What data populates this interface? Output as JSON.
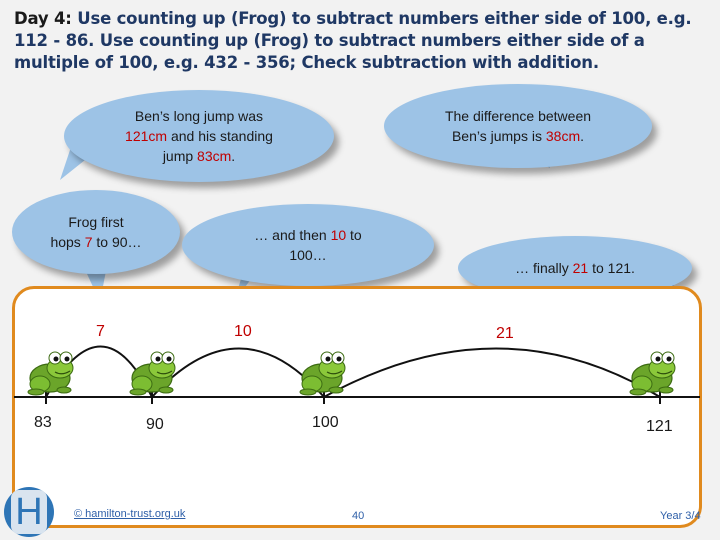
{
  "title": {
    "label": "Day 4:",
    "text": "Use counting up (Frog) to subtract numbers either side of 100, e.g. 112 - 86. Use counting up (Frog) to subtract numbers either side of a multiple of 100, e.g. 432 - 356; Check subtraction with addition."
  },
  "bubbles": {
    "long_jump": {
      "t1": "Ben’s long jump was",
      "v1": "121cm",
      "t2": " and his standing",
      "t3": "jump ",
      "v2": "83cm",
      "t4": "."
    },
    "difference": {
      "t1": "The difference between",
      "t2": "Ben’s jumps is ",
      "v1": "38cm",
      "t3": "."
    },
    "frog_first": {
      "t1": "Frog first",
      "t2": "hops ",
      "v1": "7",
      "t3": " to 90…"
    },
    "then_10": {
      "t1": "… and then ",
      "v1": "10",
      "t2": " to",
      "t3": "100…"
    },
    "finally_21": {
      "t1": "… finally ",
      "v1": "21",
      "t2": " to 121."
    }
  },
  "numberline": {
    "jumps": [
      "7",
      "10",
      "21"
    ],
    "labels": [
      "83",
      "90",
      "100",
      "121"
    ]
  },
  "footer": {
    "copyright": "© hamilton-trust.org.uk",
    "page": "40",
    "year": "Year 3/4",
    "logo_letter": "H"
  },
  "colors": {
    "accent_red": "#c00000",
    "bubble_blue": "#9dc3e6",
    "frame_orange": "#e08a1e",
    "title_blue": "#1f3864"
  }
}
